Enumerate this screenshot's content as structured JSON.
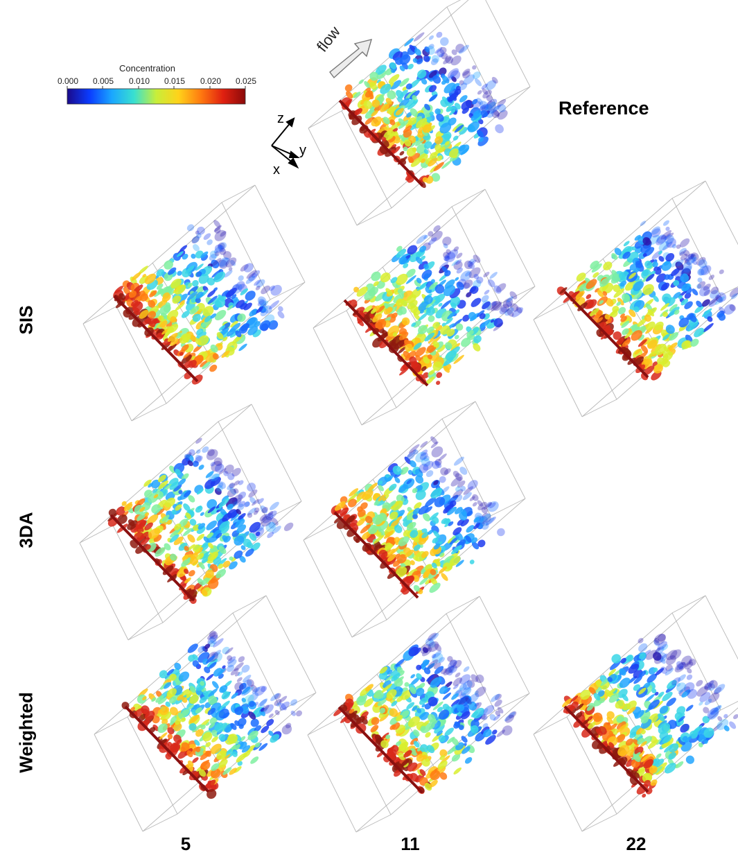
{
  "colorbar": {
    "title": "Concentration",
    "ticks": [
      "0.000",
      "0.005",
      "0.010",
      "0.015",
      "0.020",
      "0.025"
    ],
    "colormap": [
      "#1a0a8a",
      "#0a3cff",
      "#1aa6ff",
      "#39e0d0",
      "#c8ee3a",
      "#ffd21a",
      "#ff7a10",
      "#e02010",
      "#8a0a0a"
    ]
  },
  "axes": {
    "z": "z",
    "y": "y",
    "x": "x"
  },
  "flow_label": "flow",
  "reference_label": "Reference",
  "row_labels": [
    "SIS",
    "3DA",
    "Weighted"
  ],
  "column_labels": [
    "5",
    "11",
    "22"
  ],
  "panels": [
    {
      "id": "reference",
      "row": "Reference",
      "column": "11",
      "present": true
    },
    {
      "id": "sis-5",
      "row": "SIS",
      "column": "5",
      "present": true
    },
    {
      "id": "sis-11",
      "row": "SIS",
      "column": "11",
      "present": true
    },
    {
      "id": "sis-22",
      "row": "SIS",
      "column": "22",
      "present": true
    },
    {
      "id": "3da-5",
      "row": "3DA",
      "column": "5",
      "present": true
    },
    {
      "id": "3da-11",
      "row": "3DA",
      "column": "11",
      "present": true
    },
    {
      "id": "3da-22",
      "row": "3DA",
      "column": "22",
      "present": false
    },
    {
      "id": "weighted-5",
      "row": "Weighted",
      "column": "5",
      "present": true
    },
    {
      "id": "weighted-11",
      "row": "Weighted",
      "column": "11",
      "present": true
    },
    {
      "id": "weighted-22",
      "row": "Weighted",
      "column": "22",
      "present": true
    }
  ]
}
